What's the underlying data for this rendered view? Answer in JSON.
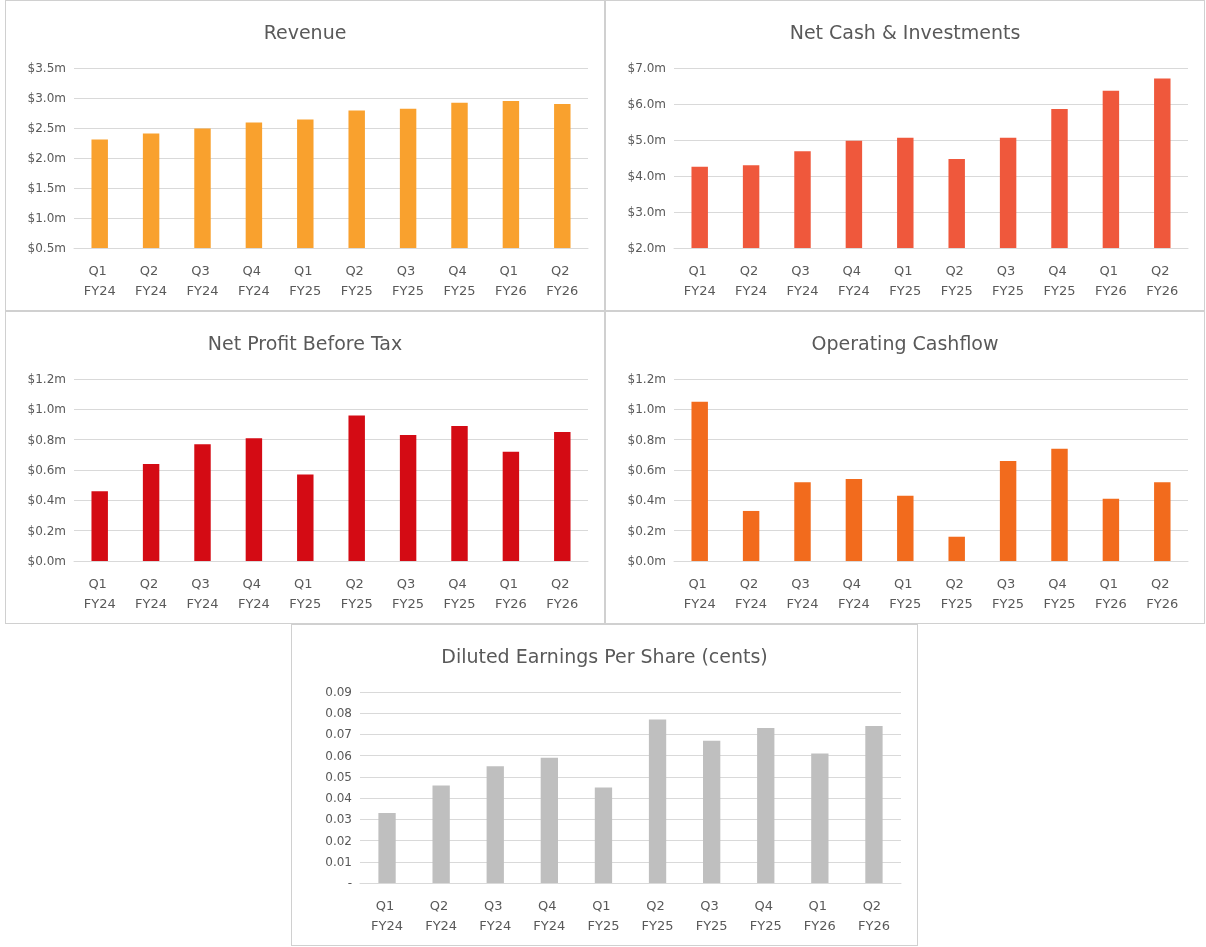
{
  "chart_data": [
    {
      "type": "bar",
      "title": "Revenue",
      "categories": [
        "Q1 FY24",
        "Q2 FY24",
        "Q3 FY24",
        "Q4 FY24",
        "Q1 FY25",
        "Q2 FY25",
        "Q3 FY25",
        "Q4 FY25",
        "Q1 FY26",
        "Q2 FY26"
      ],
      "values": [
        2.31,
        2.41,
        2.49,
        2.59,
        2.64,
        2.79,
        2.82,
        2.92,
        2.95,
        2.9
      ],
      "color": "#f9a12e",
      "ylim": [
        0.5,
        3.5
      ],
      "yticks": [
        {
          "value": 0.5,
          "label": "$0.5m"
        },
        {
          "value": 1.0,
          "label": "$1.0m"
        },
        {
          "value": 1.5,
          "label": "$1.5m"
        },
        {
          "value": 2.0,
          "label": "$2.0m"
        },
        {
          "value": 2.5,
          "label": "$2.5m"
        },
        {
          "value": 3.0,
          "label": "$3.0m"
        },
        {
          "value": 3.5,
          "label": "$3.5m"
        }
      ],
      "grid": "y"
    },
    {
      "type": "bar",
      "title": "Net Cash & Investments",
      "categories": [
        "Q1 FY24",
        "Q2 FY24",
        "Q3 FY24",
        "Q4 FY24",
        "Q1 FY25",
        "Q2 FY25",
        "Q3 FY25",
        "Q4 FY25",
        "Q1 FY26",
        "Q2 FY26"
      ],
      "values": [
        4.26,
        4.3,
        4.69,
        4.98,
        5.06,
        4.47,
        5.06,
        5.86,
        6.37,
        6.71
      ],
      "color": "#ef583c",
      "ylim": [
        2.0,
        7.0
      ],
      "yticks": [
        {
          "value": 2.0,
          "label": "$2.0m"
        },
        {
          "value": 3.0,
          "label": "$3.0m"
        },
        {
          "value": 4.0,
          "label": "$4.0m"
        },
        {
          "value": 5.0,
          "label": "$5.0m"
        },
        {
          "value": 6.0,
          "label": "$6.0m"
        },
        {
          "value": 7.0,
          "label": "$7.0m"
        }
      ],
      "grid": "y"
    },
    {
      "type": "bar",
      "title": "Net Profit Before Tax",
      "categories": [
        "Q1 FY24",
        "Q2 FY24",
        "Q3 FY24",
        "Q4 FY24",
        "Q1 FY25",
        "Q2 FY25",
        "Q3 FY25",
        "Q4 FY25",
        "Q1 FY26",
        "Q2 FY26"
      ],
      "values": [
        0.46,
        0.64,
        0.77,
        0.81,
        0.57,
        0.96,
        0.83,
        0.89,
        0.72,
        0.85
      ],
      "color": "#d40b14",
      "ylim": [
        0,
        1.2
      ],
      "yticks": [
        {
          "value": 0,
          "label": "$0.0m"
        },
        {
          "value": 0.2,
          "label": "$0.2m"
        },
        {
          "value": 0.4,
          "label": "$0.4m"
        },
        {
          "value": 0.6,
          "label": "$0.6m"
        },
        {
          "value": 0.8,
          "label": "$0.8m"
        },
        {
          "value": 1.0,
          "label": "$1.0m"
        },
        {
          "value": 1.2,
          "label": "$1.2m"
        }
      ],
      "grid": "y"
    },
    {
      "type": "bar",
      "title": "Operating Cashflow",
      "categories": [
        "Q1 FY24",
        "Q2 FY24",
        "Q3 FY24",
        "Q4 FY24",
        "Q1 FY25",
        "Q2 FY25",
        "Q3 FY25",
        "Q4 FY25",
        "Q1 FY26",
        "Q2 FY26"
      ],
      "values": [
        1.05,
        0.33,
        0.52,
        0.54,
        0.43,
        0.16,
        0.66,
        0.74,
        0.41,
        0.52
      ],
      "color": "#f26b1d",
      "ylim": [
        0,
        1.2
      ],
      "yticks": [
        {
          "value": 0,
          "label": "$0.0m"
        },
        {
          "value": 0.2,
          "label": "$0.2m"
        },
        {
          "value": 0.4,
          "label": "$0.4m"
        },
        {
          "value": 0.6,
          "label": "$0.6m"
        },
        {
          "value": 0.8,
          "label": "$0.8m"
        },
        {
          "value": 1.0,
          "label": "$1.0m"
        },
        {
          "value": 1.2,
          "label": "$1.2m"
        }
      ],
      "grid": "y"
    },
    {
      "type": "bar",
      "title": "Diluted Earnings Per Share (cents)",
      "categories": [
        "Q1 FY24",
        "Q2 FY24",
        "Q3 FY24",
        "Q4 FY24",
        "Q1 FY25",
        "Q2 FY25",
        "Q3 FY25",
        "Q4 FY25",
        "Q1 FY26",
        "Q2 FY26"
      ],
      "values": [
        0.033,
        0.046,
        0.055,
        0.059,
        0.045,
        0.077,
        0.067,
        0.073,
        0.061,
        0.074
      ],
      "color": "#bfbfbf",
      "ylim": [
        0,
        0.09
      ],
      "yticks": [
        {
          "value": 0,
          "label": "-"
        },
        0.01,
        0.02,
        0.03,
        0.04,
        0.05,
        0.06,
        0.07,
        0.08,
        0.09
      ],
      "grid": "y"
    }
  ]
}
